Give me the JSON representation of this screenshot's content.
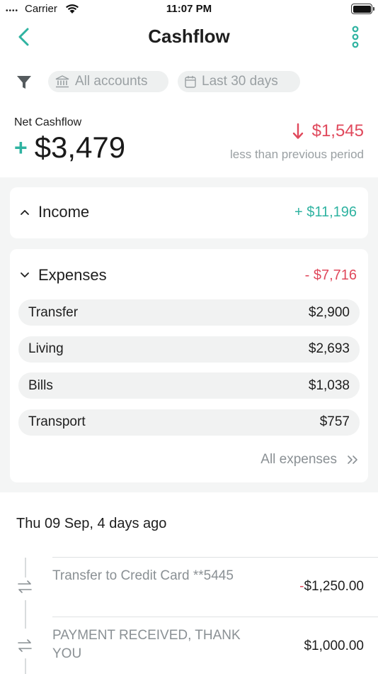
{
  "status_bar": {
    "carrier": "Carrier",
    "time": "11:07 PM"
  },
  "nav": {
    "title": "Cashflow",
    "back_icon": "chevron-left-icon",
    "more_icon": "vertical-dots-icon"
  },
  "filters": {
    "accounts": "All accounts",
    "period": "Last 30 days"
  },
  "summary": {
    "label": "Net Cashflow",
    "sign": "+",
    "value": "$3,479",
    "change": "$1,545",
    "change_caption": "less than previous period"
  },
  "income": {
    "title": "Income",
    "total": "+ $11,196"
  },
  "expenses": {
    "title": "Expenses",
    "total": "- $7,716",
    "items": [
      {
        "label": "Transfer",
        "amount": "$2,900"
      },
      {
        "label": "Living",
        "amount": "$2,693"
      },
      {
        "label": "Bills",
        "amount": "$1,038"
      },
      {
        "label": "Transport",
        "amount": "$757"
      }
    ],
    "all_link": "All expenses"
  },
  "transactions": {
    "date_header": "Thu 09 Sep, 4 days ago",
    "items": [
      {
        "description": "Transfer to Credit Card **5445",
        "sign": "-",
        "amount": "$1,250.00"
      },
      {
        "description": "PAYMENT RECEIVED, THANK YOU",
        "sign": "",
        "amount": "$1,000.00"
      }
    ]
  },
  "colors": {
    "accent": "#2fb3a1",
    "negative": "#e0495c",
    "muted": "#9aa0a3",
    "panel": "#f4f5f5"
  }
}
